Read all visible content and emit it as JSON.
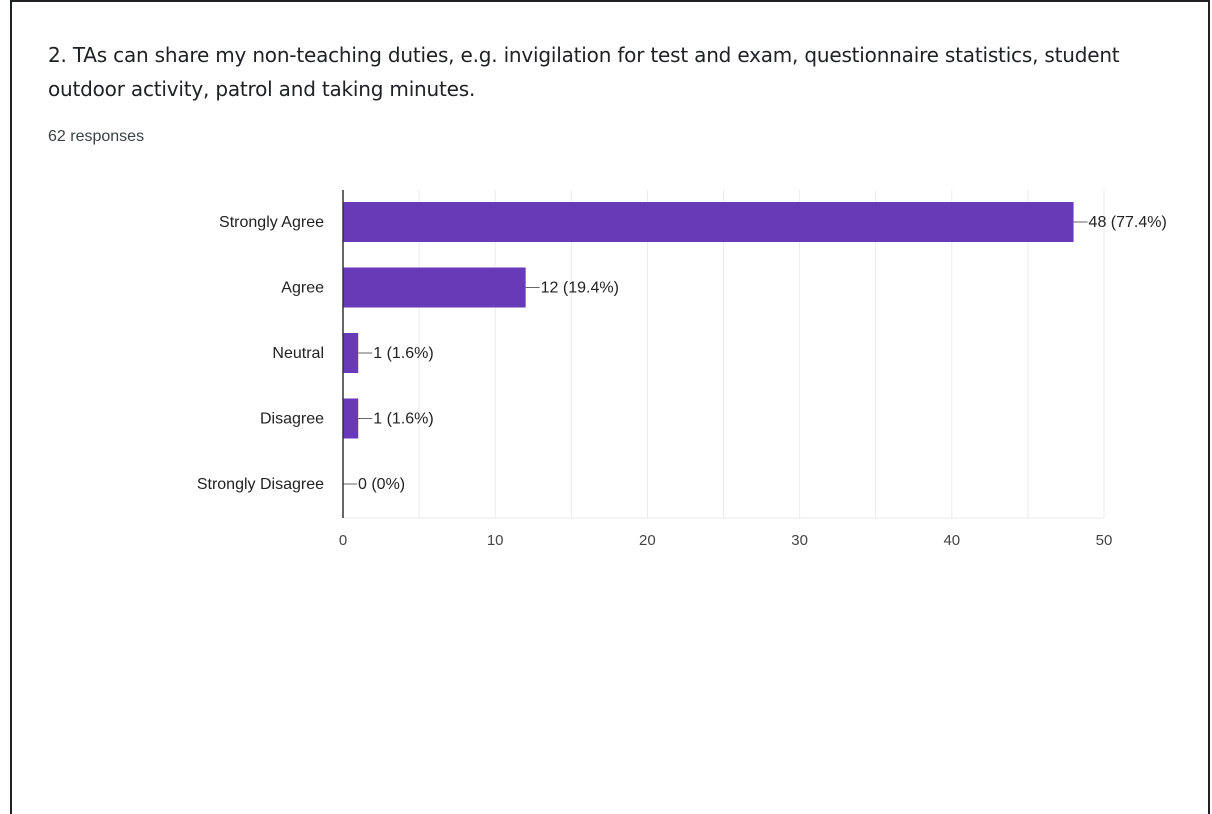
{
  "question": {
    "title": "2. TAs can share my non-teaching duties, e.g. invigilation for test and exam, questionnaire statistics, student outdoor activity, patrol and taking minutes.",
    "responses": "62 responses"
  },
  "colors": {
    "bar": "#673ab7",
    "grid": "#ebebeb",
    "axis": "#333333",
    "text": "#222222"
  },
  "chart_data": {
    "type": "bar",
    "orientation": "horizontal",
    "categories": [
      "Strongly Agree",
      "Agree",
      "Neutral",
      "Disagree",
      "Strongly Disagree"
    ],
    "values": [
      48,
      12,
      1,
      1,
      0
    ],
    "data_labels": [
      "48 (77.4%)",
      "12 (19.4%)",
      "1 (1.6%)",
      "1 (1.6%)",
      "0 (0%)"
    ],
    "xlim": [
      0,
      50
    ],
    "xticks": [
      0,
      10,
      20,
      30,
      40,
      50
    ],
    "grid": true,
    "legend": "none"
  }
}
